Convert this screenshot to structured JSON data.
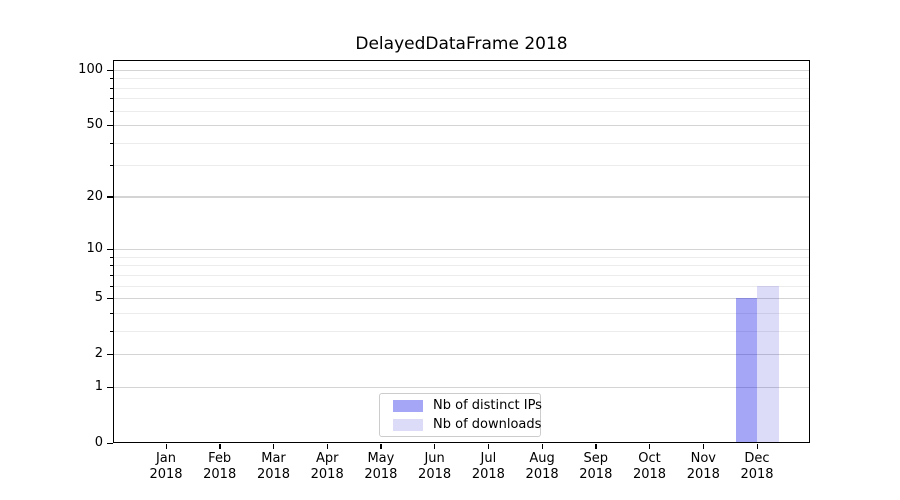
{
  "chart_data": {
    "type": "bar",
    "title": "DelayedDataFrame 2018",
    "categories": [
      "Jan 2018",
      "Feb 2018",
      "Mar 2018",
      "Apr 2018",
      "May 2018",
      "Jun 2018",
      "Jul 2018",
      "Aug 2018",
      "Sep 2018",
      "Oct 2018",
      "Nov 2018",
      "Dec 2018"
    ],
    "x_tick_months": [
      "Jan",
      "Feb",
      "Mar",
      "Apr",
      "May",
      "Jun",
      "Jul",
      "Aug",
      "Sep",
      "Oct",
      "Nov",
      "Dec"
    ],
    "x_tick_year": "2018",
    "series": [
      {
        "name": "Nb of distinct IPs",
        "color": "rgba(0,0,230,0.35)",
        "values": [
          0,
          0,
          0,
          0,
          0,
          0,
          0,
          0,
          0,
          0,
          0,
          5
        ]
      },
      {
        "name": "Nb of downloads",
        "color": "rgba(20,20,215,0.15)",
        "values": [
          0,
          0,
          0,
          0,
          0,
          0,
          0,
          0,
          0,
          0,
          0,
          6
        ]
      }
    ],
    "yscale": "log1p",
    "ylim": [
      0,
      112
    ],
    "y_major_ticks": [
      0,
      1,
      2,
      5,
      10,
      20,
      50,
      100
    ],
    "y_minor_ticks": [
      3,
      4,
      6,
      7,
      8,
      9,
      30,
      40,
      60,
      70,
      80,
      90
    ],
    "xlabel": "",
    "ylabel": "",
    "grid": "horizontal",
    "legend_position": "lower center"
  },
  "colors": {
    "grid_major": "#d4d4d4",
    "grid_minor": "#ececec",
    "spine": "#000000",
    "text": "#000000",
    "legend_border": "#cccccc",
    "background": "#ffffff"
  }
}
